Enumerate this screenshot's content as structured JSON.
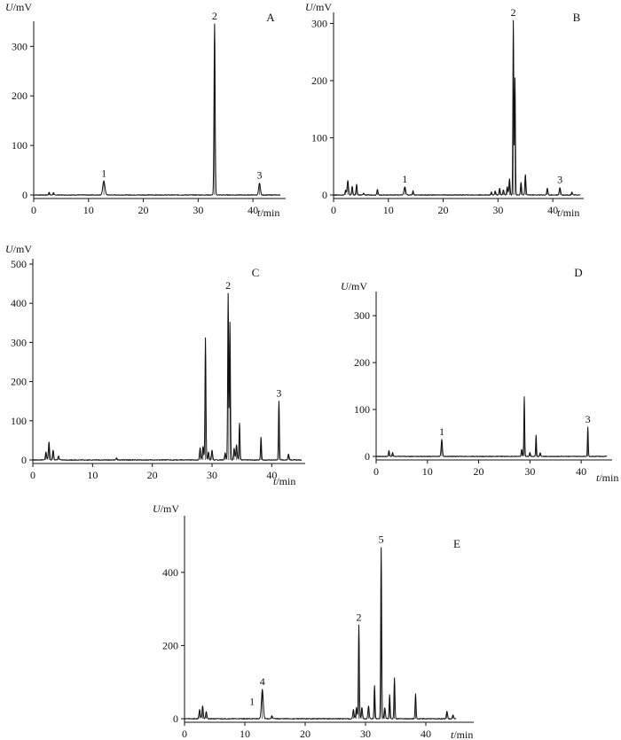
{
  "figure": {
    "panels": [
      "A",
      "B",
      "C",
      "D",
      "E"
    ]
  },
  "chart_data": [
    {
      "id": "A",
      "type": "line",
      "ylabel": "U/mV",
      "xlabel": "t/min",
      "xlim": [
        0,
        45
      ],
      "ylim": [
        0,
        340
      ],
      "xticks": [
        0,
        10,
        20,
        30,
        40
      ],
      "yticks": [
        0,
        100,
        200,
        300
      ],
      "baseline": 0,
      "peaks": [
        {
          "x": 2.8,
          "y": 6,
          "w": 0.08
        },
        {
          "x": 3.6,
          "y": 5,
          "w": 0.08
        },
        {
          "x": 12.8,
          "y": 28,
          "w": 0.2
        },
        {
          "x": 33.0,
          "y": 345,
          "w": 0.1
        },
        {
          "x": 41.2,
          "y": 24,
          "w": 0.15
        }
      ],
      "peak_labels": [
        {
          "text": "1",
          "x": 12.8,
          "y": 28
        },
        {
          "text": "2",
          "x": 33.0,
          "y": 345
        },
        {
          "text": "3",
          "x": 41.2,
          "y": 24
        }
      ]
    },
    {
      "id": "B",
      "type": "line",
      "ylabel": "U/mV",
      "xlabel": "t/min",
      "xlim": [
        0,
        45
      ],
      "ylim": [
        0,
        310
      ],
      "xticks": [
        0,
        10,
        20,
        30,
        40
      ],
      "yticks": [
        0,
        100,
        200,
        300
      ],
      "baseline": 0,
      "peaks": [
        {
          "x": 2.2,
          "y": 8,
          "w": 0.1
        },
        {
          "x": 2.6,
          "y": 25,
          "w": 0.12
        },
        {
          "x": 3.4,
          "y": 15,
          "w": 0.1
        },
        {
          "x": 4.2,
          "y": 18,
          "w": 0.1
        },
        {
          "x": 5.5,
          "y": 3,
          "w": 0.1
        },
        {
          "x": 8.0,
          "y": 10,
          "w": 0.1
        },
        {
          "x": 13.0,
          "y": 14,
          "w": 0.15
        },
        {
          "x": 14.5,
          "y": 7,
          "w": 0.1
        },
        {
          "x": 28.8,
          "y": 5,
          "w": 0.1
        },
        {
          "x": 29.5,
          "y": 7,
          "w": 0.1
        },
        {
          "x": 30.3,
          "y": 12,
          "w": 0.1
        },
        {
          "x": 31.0,
          "y": 9,
          "w": 0.1
        },
        {
          "x": 31.7,
          "y": 14,
          "w": 0.1
        },
        {
          "x": 32.1,
          "y": 28,
          "w": 0.1
        },
        {
          "x": 32.8,
          "y": 305,
          "w": 0.08
        },
        {
          "x": 33.1,
          "y": 205,
          "w": 0.08
        },
        {
          "x": 34.2,
          "y": 22,
          "w": 0.1
        },
        {
          "x": 35.0,
          "y": 35,
          "w": 0.1
        },
        {
          "x": 39.0,
          "y": 12,
          "w": 0.1
        },
        {
          "x": 41.3,
          "y": 13,
          "w": 0.12
        },
        {
          "x": 43.5,
          "y": 5,
          "w": 0.1
        }
      ],
      "peak_labels": [
        {
          "text": "1",
          "x": 13.0,
          "y": 14
        },
        {
          "text": "2",
          "x": 32.8,
          "y": 305
        },
        {
          "text": "3",
          "x": 41.3,
          "y": 13
        }
      ]
    },
    {
      "id": "C",
      "type": "line",
      "ylabel": "U/mV",
      "xlabel": "t/min",
      "xlim": [
        0,
        45
      ],
      "ylim": [
        0,
        500
      ],
      "xticks": [
        0,
        10,
        20,
        30,
        40
      ],
      "yticks": [
        0,
        100,
        200,
        300,
        400,
        500
      ],
      "baseline": 0,
      "peaks": [
        {
          "x": 2.2,
          "y": 20,
          "w": 0.1
        },
        {
          "x": 2.7,
          "y": 45,
          "w": 0.1
        },
        {
          "x": 3.4,
          "y": 25,
          "w": 0.1
        },
        {
          "x": 4.3,
          "y": 10,
          "w": 0.1
        },
        {
          "x": 14.0,
          "y": 5,
          "w": 0.1
        },
        {
          "x": 28.0,
          "y": 30,
          "w": 0.1
        },
        {
          "x": 28.5,
          "y": 35,
          "w": 0.1
        },
        {
          "x": 28.9,
          "y": 312,
          "w": 0.08
        },
        {
          "x": 29.4,
          "y": 20,
          "w": 0.1
        },
        {
          "x": 30.0,
          "y": 25,
          "w": 0.1
        },
        {
          "x": 32.2,
          "y": 18,
          "w": 0.1
        },
        {
          "x": 32.7,
          "y": 425,
          "w": 0.08
        },
        {
          "x": 33.0,
          "y": 352,
          "w": 0.08
        },
        {
          "x": 33.7,
          "y": 30,
          "w": 0.1
        },
        {
          "x": 34.1,
          "y": 38,
          "w": 0.1
        },
        {
          "x": 34.6,
          "y": 95,
          "w": 0.08
        },
        {
          "x": 38.2,
          "y": 58,
          "w": 0.08
        },
        {
          "x": 41.2,
          "y": 150,
          "w": 0.08
        },
        {
          "x": 42.8,
          "y": 15,
          "w": 0.1
        }
      ],
      "peak_labels": [
        {
          "text": "2",
          "x": 32.7,
          "y": 425
        },
        {
          "text": "3",
          "x": 41.2,
          "y": 150
        }
      ]
    },
    {
      "id": "D",
      "type": "line",
      "ylabel": "U/mV",
      "xlabel": "t/min",
      "xlim": [
        0,
        45
      ],
      "ylim": [
        0,
        340
      ],
      "xticks": [
        0,
        10,
        20,
        30,
        40
      ],
      "yticks": [
        0,
        100,
        200,
        300
      ],
      "baseline": 0,
      "peaks": [
        {
          "x": 2.5,
          "y": 12,
          "w": 0.1
        },
        {
          "x": 3.2,
          "y": 8,
          "w": 0.1
        },
        {
          "x": 12.8,
          "y": 36,
          "w": 0.12
        },
        {
          "x": 28.4,
          "y": 15,
          "w": 0.1
        },
        {
          "x": 28.9,
          "y": 127,
          "w": 0.08
        },
        {
          "x": 30.0,
          "y": 8,
          "w": 0.1
        },
        {
          "x": 31.2,
          "y": 45,
          "w": 0.08
        },
        {
          "x": 32.0,
          "y": 8,
          "w": 0.1
        },
        {
          "x": 41.3,
          "y": 62,
          "w": 0.08
        }
      ],
      "peak_labels": [
        {
          "text": "1",
          "x": 12.8,
          "y": 36
        },
        {
          "text": "3",
          "x": 41.3,
          "y": 62
        }
      ]
    },
    {
      "id": "E",
      "type": "line",
      "ylabel": "U/mV",
      "xlabel": "t/min",
      "xlim": [
        0,
        45
      ],
      "ylim": [
        0,
        540
      ],
      "xticks": [
        0,
        10,
        20,
        30,
        40
      ],
      "yticks": [
        0,
        200,
        400
      ],
      "baseline": 0,
      "peaks": [
        {
          "x": 2.5,
          "y": 25,
          "w": 0.1
        },
        {
          "x": 3.0,
          "y": 35,
          "w": 0.1
        },
        {
          "x": 3.6,
          "y": 20,
          "w": 0.1
        },
        {
          "x": 12.9,
          "y": 80,
          "w": 0.15
        },
        {
          "x": 14.5,
          "y": 8,
          "w": 0.1
        },
        {
          "x": 28.0,
          "y": 25,
          "w": 0.1
        },
        {
          "x": 28.5,
          "y": 30,
          "w": 0.1
        },
        {
          "x": 28.9,
          "y": 255,
          "w": 0.08
        },
        {
          "x": 29.4,
          "y": 30,
          "w": 0.1
        },
        {
          "x": 30.5,
          "y": 35,
          "w": 0.1
        },
        {
          "x": 31.5,
          "y": 90,
          "w": 0.08
        },
        {
          "x": 32.6,
          "y": 468,
          "w": 0.08
        },
        {
          "x": 33.2,
          "y": 30,
          "w": 0.1
        },
        {
          "x": 34.0,
          "y": 65,
          "w": 0.08
        },
        {
          "x": 34.8,
          "y": 112,
          "w": 0.08
        },
        {
          "x": 38.3,
          "y": 68,
          "w": 0.08
        },
        {
          "x": 43.5,
          "y": 20,
          "w": 0.1
        },
        {
          "x": 44.5,
          "y": 10,
          "w": 0.1
        }
      ],
      "peak_labels": [
        {
          "text": "1",
          "x": 11.2,
          "y": 25
        },
        {
          "text": "4",
          "x": 12.9,
          "y": 80
        },
        {
          "text": "2",
          "x": 28.9,
          "y": 255
        },
        {
          "text": "5",
          "x": 32.6,
          "y": 468
        }
      ]
    }
  ]
}
